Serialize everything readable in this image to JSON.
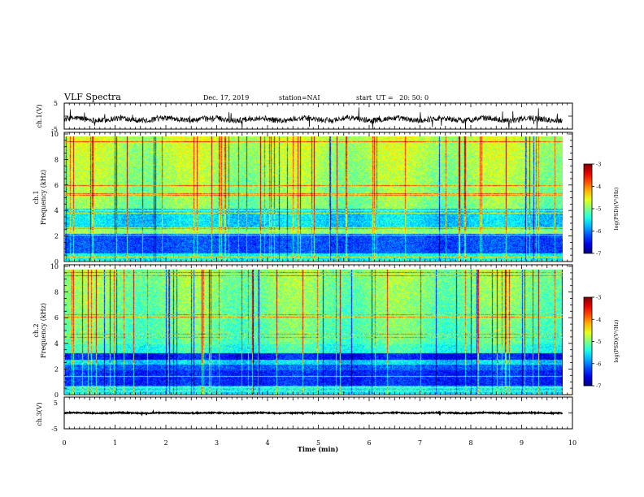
{
  "header": {
    "title": "VLF Spectra",
    "date": "Dec. 17, 2019",
    "station": "station=NAI",
    "start": "start  UT =   20: 50: 0"
  },
  "chart_data": [
    {
      "type": "line",
      "panel": "ch1-waveform",
      "ylabel": "ch.1(V)",
      "ylim": [
        -5,
        5
      ],
      "yticks": [
        "5",
        "-5"
      ],
      "xlim": [
        0,
        10
      ],
      "series_level": -1.2
    },
    {
      "type": "heatmap",
      "panel": "ch1-spectrogram",
      "ylabel_lines": [
        "ch.1",
        "Frequency (kHz)"
      ],
      "ylim": [
        0,
        10
      ],
      "yticks": [
        "0",
        "2",
        "4",
        "6",
        "8",
        "10"
      ],
      "xlim": [
        0,
        9.85
      ],
      "colorbar": {
        "label": "log(PSD)(V²/Hz)",
        "ticks": [
          "-3",
          "-4",
          "-5",
          "-6",
          "-7"
        ],
        "range": [
          -7,
          -3
        ]
      }
    },
    {
      "type": "heatmap",
      "panel": "ch2-spectrogram",
      "ylabel_lines": [
        "ch.2",
        "Frequency (kHz)"
      ],
      "ylim": [
        0,
        10
      ],
      "yticks": [
        "0",
        "2",
        "4",
        "6",
        "8",
        "10"
      ],
      "xlim": [
        0,
        9.85
      ],
      "colorbar": {
        "label": "log(PSD)(V²/Hz)",
        "ticks": [
          "-3",
          "-4",
          "-5",
          "-6",
          "-7"
        ],
        "range": [
          -7,
          -3
        ]
      }
    },
    {
      "type": "line",
      "panel": "ch3-waveform",
      "ylabel": "ch.3(V)",
      "ylim": [
        -5,
        5
      ],
      "yticks": [
        "5",
        "-5"
      ],
      "xlim": [
        0,
        10
      ],
      "series_level": 0
    }
  ],
  "xaxis": {
    "label": "Time (min)",
    "ticks": [
      "0",
      "1",
      "2",
      "3",
      "4",
      "5",
      "6",
      "7",
      "8",
      "9",
      "10"
    ],
    "range": [
      0,
      10
    ]
  },
  "colors": {
    "frame": "#000000",
    "background": "#ffffff"
  }
}
